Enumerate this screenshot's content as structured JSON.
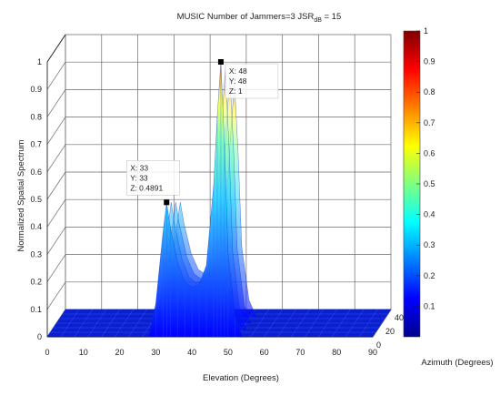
{
  "chart_data": {
    "type": "surface",
    "title": "MUSIC      Number of Jammers=3   JSR",
    "title_subscript": "dB",
    "title_suffix": " = 15",
    "xlabel": "Elevation (Degrees)",
    "ylabel": "Normalized Spatial Spectrum",
    "azimuth_label": "Azimuth (Degrees)",
    "xlim": [
      0,
      90
    ],
    "ylim": [
      0,
      1
    ],
    "azimuth_lim": [
      0,
      40
    ],
    "x_ticks": [
      "0",
      "10",
      "20",
      "30",
      "40",
      "50",
      "60",
      "70",
      "80",
      "90"
    ],
    "y_ticks": [
      "0",
      "0.1",
      "0.2",
      "0.3",
      "0.4",
      "0.5",
      "0.6",
      "0.7",
      "0.8",
      "0.9",
      "1"
    ],
    "azimuth_ticks": [
      "0",
      "20",
      "40"
    ],
    "colorbar_ticks": [
      "0.1",
      "0.2",
      "0.3",
      "0.4",
      "0.5",
      "0.6",
      "0.7",
      "0.8",
      "0.9",
      "1"
    ],
    "grid": true,
    "colormap": "jet",
    "peaks": [
      {
        "x": 33,
        "y": 33,
        "z": 0.4891
      },
      {
        "x": 48,
        "y": 48,
        "z": 1
      }
    ],
    "spectrum_profile": {
      "elevation": [
        28,
        30,
        32,
        33,
        34,
        36,
        38,
        40,
        42,
        44,
        46,
        47,
        48,
        49,
        50,
        52,
        54
      ],
      "value": [
        0.0,
        0.12,
        0.38,
        0.4891,
        0.4,
        0.27,
        0.2,
        0.18,
        0.19,
        0.26,
        0.55,
        0.8,
        1.0,
        0.7,
        0.3,
        0.07,
        0.0
      ]
    },
    "datatips": [
      {
        "x_label": "X: 33",
        "y_label": "Y: 33",
        "z_label": "Z: 0.4891"
      },
      {
        "x_label": "X: 48",
        "y_label": "Y: 48",
        "z_label": "Z: 1"
      }
    ]
  }
}
